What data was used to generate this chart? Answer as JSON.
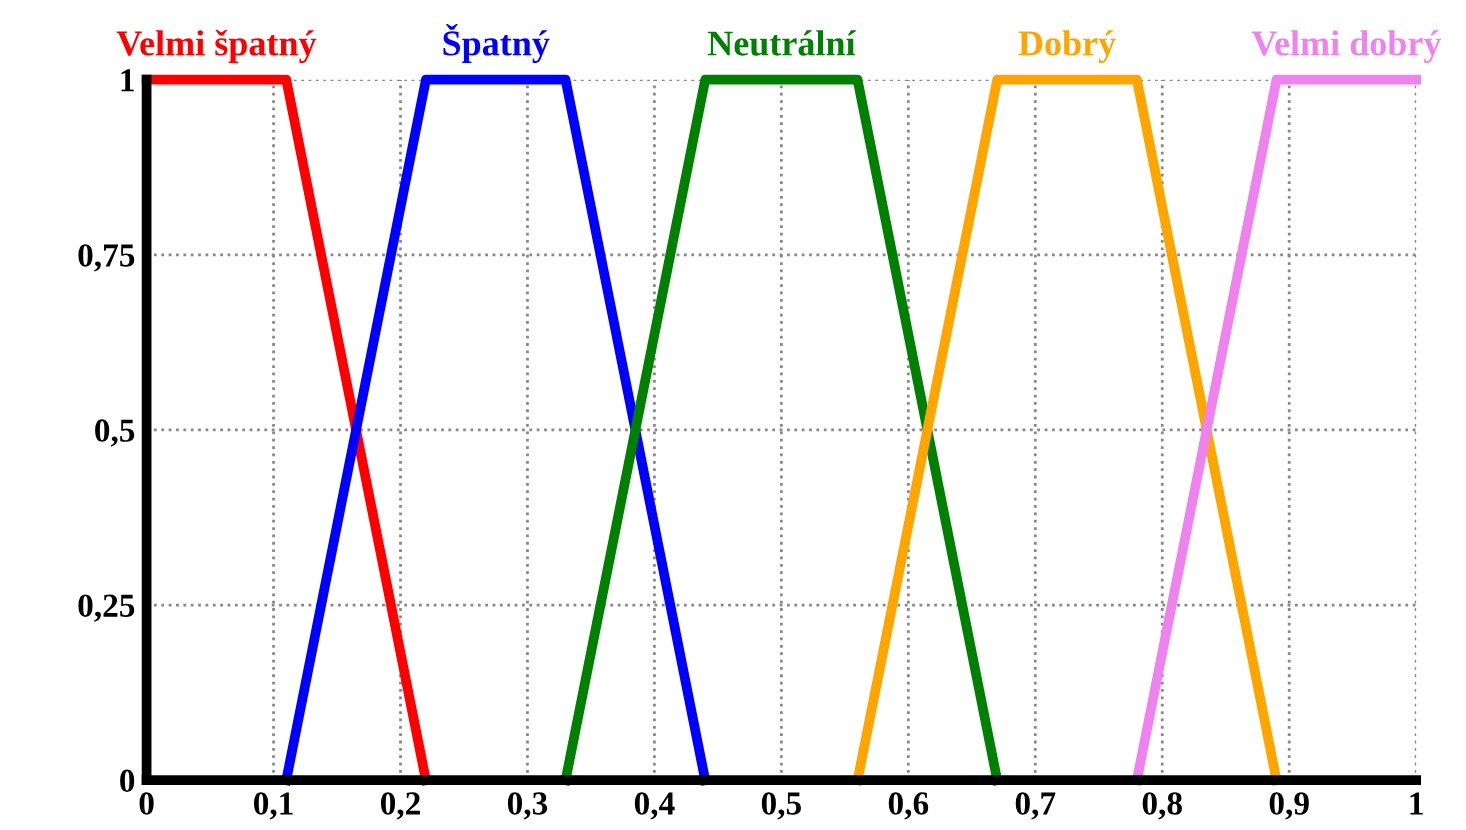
{
  "chart_data": {
    "type": "line",
    "series": [
      {
        "name": "Velmi špatný",
        "color": "#ff0000",
        "x": [
          0,
          0.11,
          0.22
        ],
        "values": [
          1,
          1,
          0
        ]
      },
      {
        "name": "Špatný",
        "color": "#0000ff",
        "x": [
          0.11,
          0.22,
          0.33,
          0.44
        ],
        "values": [
          0,
          1,
          1,
          0
        ]
      },
      {
        "name": "Neutrální",
        "color": "#008000",
        "x": [
          0.33,
          0.44,
          0.56,
          0.67
        ],
        "values": [
          0,
          1,
          1,
          0
        ]
      },
      {
        "name": "Dobrý",
        "color": "#ffa500",
        "x": [
          0.56,
          0.67,
          0.78,
          0.89
        ],
        "values": [
          0,
          1,
          1,
          0
        ]
      },
      {
        "name": "Velmi dobrý",
        "color": "#ee82ee",
        "x": [
          0.78,
          0.89,
          1
        ],
        "values": [
          0,
          1,
          1
        ]
      }
    ],
    "xlim": [
      0,
      1
    ],
    "xticks": [
      0,
      {
        "value": 0.1,
        "label": "0,1"
      },
      {
        "value": 0.2,
        "label": "0,2"
      },
      {
        "value": 0.3,
        "label": "0,3"
      },
      {
        "value": 0.4,
        "label": "0,4"
      },
      {
        "value": 0.5,
        "label": "0,5"
      },
      {
        "value": 0.6,
        "label": "0,6"
      },
      {
        "value": 0.7,
        "label": "0,7"
      },
      {
        "value": 0.8,
        "label": "0,8"
      },
      {
        "value": 0.9,
        "label": "0,9"
      },
      1
    ],
    "ylim": [
      0,
      1
    ],
    "yticks": [
      0,
      {
        "value": 0.25,
        "label": "0,25"
      },
      {
        "value": 0.5,
        "label": "0,5"
      },
      {
        "value": 0.75,
        "label": "0,75"
      },
      1
    ],
    "grid": true,
    "line_style": "solid",
    "marker": "none"
  }
}
